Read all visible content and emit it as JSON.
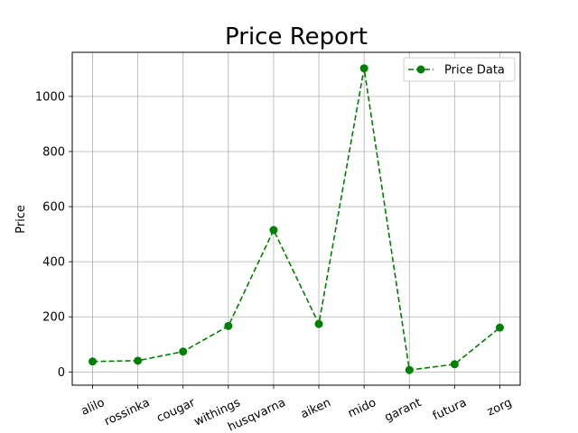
{
  "chart_data": {
    "type": "line",
    "title": "Price Report",
    "xlabel": "",
    "ylabel": "Price",
    "categories": [
      "alilo",
      "rossinka",
      "cougar",
      "withings",
      "husqvarna",
      "aiken",
      "mido",
      "garant",
      "futura",
      "zorg"
    ],
    "series": [
      {
        "name": "Price Data",
        "values": [
          38,
          41,
          74,
          167,
          515,
          174,
          1102,
          7,
          28,
          161
        ],
        "color": "#008000",
        "line_style": "dashed",
        "marker": "circle"
      }
    ],
    "ylim": [
      -48,
      1160
    ],
    "yticks": [
      0,
      200,
      400,
      600,
      800,
      1000
    ],
    "grid": true,
    "legend_position": "top-right",
    "xtick_rotation_deg": 25
  }
}
